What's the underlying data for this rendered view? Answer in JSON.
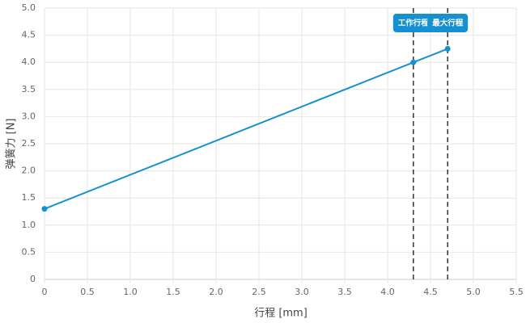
{
  "chart_data": {
    "type": "line",
    "x_label": "行程 [mm]",
    "y_label": "弹簧力 [N]",
    "x": [
      0,
      4.3,
      4.7
    ],
    "values": [
      1.3,
      4.0,
      4.25
    ],
    "color": "#1591d1",
    "xlim": [
      0,
      5.5
    ],
    "xticks": [
      0,
      0.5,
      {
        "value": 1,
        "label": "1.0"
      },
      1.5,
      {
        "value": 2,
        "label": "2.0"
      },
      2.5,
      {
        "value": 3,
        "label": "3.0"
      },
      3.5,
      {
        "value": 4,
        "label": "4.0"
      },
      4.5,
      {
        "value": 5,
        "label": "5.0"
      },
      5.5
    ],
    "ylim": [
      0,
      5
    ],
    "yticks": [
      0,
      0.5,
      {
        "value": 1,
        "label": "1.0"
      },
      1.5,
      {
        "value": 2,
        "label": "2.0"
      },
      2.5,
      {
        "value": 3,
        "label": "3.0"
      },
      3.5,
      {
        "value": 4,
        "label": "4.0"
      },
      4.5,
      {
        "value": 5,
        "label": "5.0"
      }
    ],
    "grid": true,
    "annotations": [
      {
        "x": 4.3,
        "label": "工作行程"
      },
      {
        "x": 4.7,
        "label": "最大行程"
      }
    ]
  }
}
